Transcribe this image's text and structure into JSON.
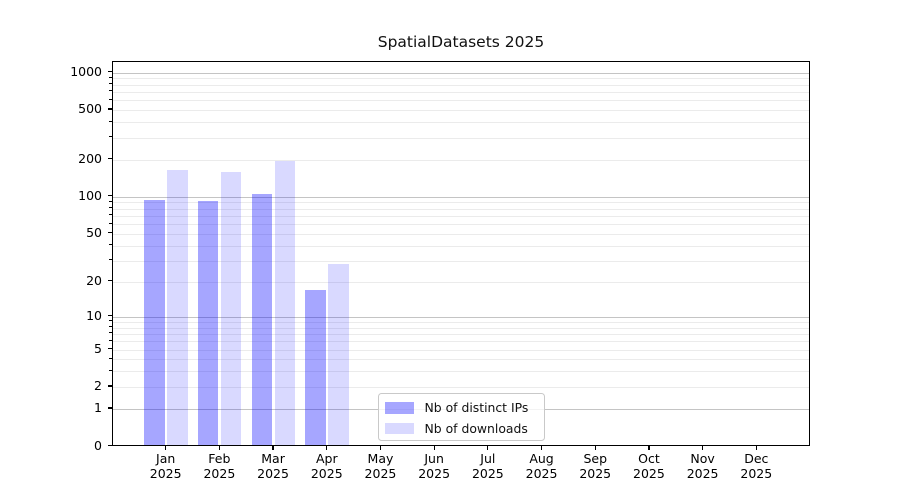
{
  "figure": {
    "title": "SpatialDatasets 2025"
  },
  "chart_data": {
    "type": "bar",
    "title": "SpatialDatasets 2025",
    "categories": [
      "Jan 2025",
      "Feb 2025",
      "Mar 2025",
      "Apr 2025",
      "May 2025",
      "Jun 2025",
      "Jul 2025",
      "Aug 2025",
      "Sep 2025",
      "Oct 2025",
      "Nov 2025",
      "Dec 2025"
    ],
    "x_tick_labels": [
      [
        "Jan",
        "2025"
      ],
      [
        "Feb",
        "2025"
      ],
      [
        "Mar",
        "2025"
      ],
      [
        "Apr",
        "2025"
      ],
      [
        "May",
        "2025"
      ],
      [
        "Jun",
        "2025"
      ],
      [
        "Jul",
        "2025"
      ],
      [
        "Aug",
        "2025"
      ],
      [
        "Sep",
        "2025"
      ],
      [
        "Oct",
        "2025"
      ],
      [
        "Nov",
        "2025"
      ],
      [
        "Dec",
        "2025"
      ]
    ],
    "series": [
      {
        "name": "Nb of distinct IPs",
        "color": "rgba(0,0,255,0.35)",
        "values": [
          95,
          93,
          105,
          17,
          0,
          0,
          0,
          0,
          0,
          0,
          0,
          0
        ]
      },
      {
        "name": "Nb of downloads",
        "color": "rgba(0,0,255,0.15)",
        "values": [
          165,
          158,
          195,
          28,
          0,
          0,
          0,
          0,
          0,
          0,
          0,
          0
        ]
      }
    ],
    "y_axis": {
      "scale": "log10(value+1)",
      "tick_labels": [
        "0",
        "1",
        "2",
        "5",
        "10",
        "20",
        "50",
        "100",
        "200",
        "500",
        "1000"
      ],
      "tick_values": [
        0,
        1,
        2,
        5,
        10,
        20,
        50,
        100,
        200,
        500,
        1000
      ],
      "minor_tick_values": [
        2,
        3,
        4,
        5,
        6,
        7,
        8,
        9,
        20,
        30,
        40,
        50,
        60,
        70,
        80,
        90,
        200,
        300,
        400,
        500,
        600,
        700,
        800,
        900
      ],
      "major_grid_values": [
        1,
        10,
        100,
        1000
      ],
      "range": [
        0,
        1200
      ]
    },
    "legend": {
      "position": "lower-center-inside",
      "items": [
        "Nb of distinct IPs",
        "Nb of downloads"
      ]
    },
    "grid": {
      "major_color": "#c4c4c4",
      "minor_color": "#ebebeb",
      "visible": true
    }
  }
}
